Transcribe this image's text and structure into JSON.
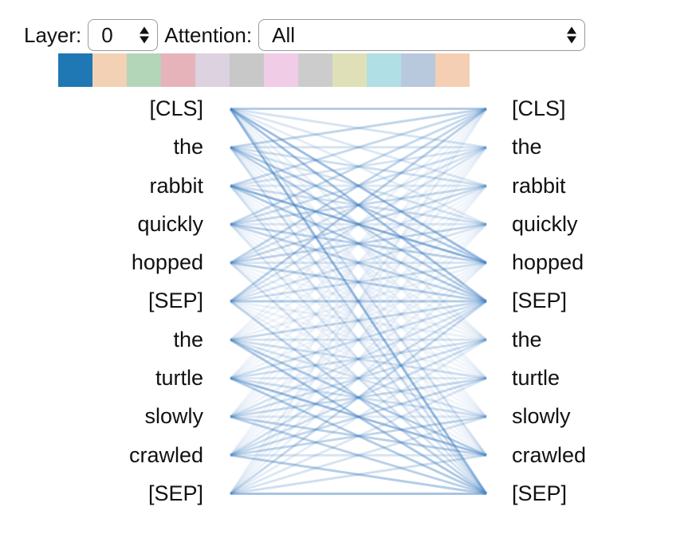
{
  "controls": {
    "layer_label": "Layer:",
    "layer_value": "0",
    "attention_label": "Attention:",
    "attention_value": "All"
  },
  "head_colors": [
    "#1f77b4",
    "#f3d1b5",
    "#b3d6b9",
    "#e6b3bb",
    "#dcd2e0",
    "#c8c8c8",
    "#f1cce6",
    "#cccccc",
    "#dfe0b8",
    "#b0dfe6",
    "#b8c9de",
    "#f4cfb3"
  ],
  "tokens": {
    "left": [
      "[CLS]",
      "the",
      "rabbit",
      "quickly",
      "hopped",
      "[SEP]",
      "the",
      "turtle",
      "slowly",
      "crawled",
      "[SEP]"
    ],
    "right": [
      "[CLS]",
      "the",
      "rabbit",
      "quickly",
      "hopped",
      "[SEP]",
      "the",
      "turtle",
      "slowly",
      "crawled",
      "[SEP]"
    ]
  },
  "attention": {
    "color": "#4a86c5",
    "edges": [
      [
        0,
        0,
        0.55
      ],
      [
        0,
        1,
        0.3
      ],
      [
        0,
        2,
        0.25
      ],
      [
        0,
        3,
        0.2
      ],
      [
        0,
        4,
        0.7
      ],
      [
        0,
        5,
        0.65
      ],
      [
        0,
        6,
        0.15
      ],
      [
        0,
        7,
        0.12
      ],
      [
        0,
        8,
        0.1
      ],
      [
        0,
        9,
        0.3
      ],
      [
        0,
        10,
        0.75
      ],
      [
        1,
        0,
        0.45
      ],
      [
        1,
        1,
        0.3
      ],
      [
        1,
        2,
        0.35
      ],
      [
        1,
        3,
        0.3
      ],
      [
        1,
        4,
        0.55
      ],
      [
        1,
        5,
        0.5
      ],
      [
        1,
        6,
        0.15
      ],
      [
        1,
        7,
        0.12
      ],
      [
        1,
        8,
        0.1
      ],
      [
        1,
        9,
        0.12
      ],
      [
        1,
        10,
        0.35
      ],
      [
        2,
        0,
        0.4
      ],
      [
        2,
        1,
        0.3
      ],
      [
        2,
        2,
        0.25
      ],
      [
        2,
        3,
        0.35
      ],
      [
        2,
        4,
        0.8
      ],
      [
        2,
        5,
        0.55
      ],
      [
        2,
        6,
        0.12
      ],
      [
        2,
        7,
        0.1
      ],
      [
        2,
        8,
        0.1
      ],
      [
        2,
        9,
        0.12
      ],
      [
        2,
        10,
        0.3
      ],
      [
        3,
        0,
        0.4
      ],
      [
        3,
        1,
        0.35
      ],
      [
        3,
        2,
        0.4
      ],
      [
        3,
        3,
        0.25
      ],
      [
        3,
        4,
        0.5
      ],
      [
        3,
        5,
        0.45
      ],
      [
        3,
        6,
        0.12
      ],
      [
        3,
        7,
        0.1
      ],
      [
        3,
        8,
        0.1
      ],
      [
        3,
        9,
        0.1
      ],
      [
        3,
        10,
        0.25
      ],
      [
        4,
        0,
        0.45
      ],
      [
        4,
        1,
        0.3
      ],
      [
        4,
        2,
        0.4
      ],
      [
        4,
        3,
        0.45
      ],
      [
        4,
        4,
        0.3
      ],
      [
        4,
        5,
        0.5
      ],
      [
        4,
        6,
        0.12
      ],
      [
        4,
        7,
        0.1
      ],
      [
        4,
        8,
        0.1
      ],
      [
        4,
        9,
        0.1
      ],
      [
        4,
        10,
        0.3
      ],
      [
        5,
        0,
        0.5
      ],
      [
        5,
        1,
        0.3
      ],
      [
        5,
        2,
        0.25
      ],
      [
        5,
        3,
        0.3
      ],
      [
        5,
        4,
        0.35
      ],
      [
        5,
        5,
        0.55
      ],
      [
        5,
        6,
        0.15
      ],
      [
        5,
        7,
        0.12
      ],
      [
        5,
        8,
        0.1
      ],
      [
        5,
        9,
        0.12
      ],
      [
        5,
        10,
        0.45
      ],
      [
        6,
        0,
        0.12
      ],
      [
        6,
        1,
        0.1
      ],
      [
        6,
        2,
        0.1
      ],
      [
        6,
        3,
        0.1
      ],
      [
        6,
        4,
        0.15
      ],
      [
        6,
        5,
        0.4
      ],
      [
        6,
        6,
        0.3
      ],
      [
        6,
        7,
        0.35
      ],
      [
        6,
        8,
        0.3
      ],
      [
        6,
        9,
        0.55
      ],
      [
        6,
        10,
        0.6
      ],
      [
        7,
        0,
        0.1
      ],
      [
        7,
        1,
        0.1
      ],
      [
        7,
        2,
        0.1
      ],
      [
        7,
        3,
        0.1
      ],
      [
        7,
        4,
        0.12
      ],
      [
        7,
        5,
        0.35
      ],
      [
        7,
        6,
        0.35
      ],
      [
        7,
        7,
        0.25
      ],
      [
        7,
        8,
        0.35
      ],
      [
        7,
        9,
        0.7
      ],
      [
        7,
        10,
        0.55
      ],
      [
        8,
        0,
        0.1
      ],
      [
        8,
        1,
        0.1
      ],
      [
        8,
        2,
        0.1
      ],
      [
        8,
        3,
        0.1
      ],
      [
        8,
        4,
        0.12
      ],
      [
        8,
        5,
        0.3
      ],
      [
        8,
        6,
        0.35
      ],
      [
        8,
        7,
        0.4
      ],
      [
        8,
        8,
        0.25
      ],
      [
        8,
        9,
        0.5
      ],
      [
        8,
        10,
        0.5
      ],
      [
        9,
        0,
        0.1
      ],
      [
        9,
        1,
        0.1
      ],
      [
        9,
        2,
        0.1
      ],
      [
        9,
        3,
        0.1
      ],
      [
        9,
        4,
        0.12
      ],
      [
        9,
        5,
        0.35
      ],
      [
        9,
        6,
        0.35
      ],
      [
        9,
        7,
        0.4
      ],
      [
        9,
        8,
        0.45
      ],
      [
        9,
        9,
        0.3
      ],
      [
        9,
        10,
        0.55
      ],
      [
        10,
        0,
        0.15
      ],
      [
        10,
        1,
        0.12
      ],
      [
        10,
        2,
        0.12
      ],
      [
        10,
        3,
        0.12
      ],
      [
        10,
        4,
        0.15
      ],
      [
        10,
        5,
        0.4
      ],
      [
        10,
        6,
        0.2
      ],
      [
        10,
        7,
        0.25
      ],
      [
        10,
        8,
        0.3
      ],
      [
        10,
        9,
        0.35
      ],
      [
        10,
        10,
        0.65
      ]
    ]
  }
}
